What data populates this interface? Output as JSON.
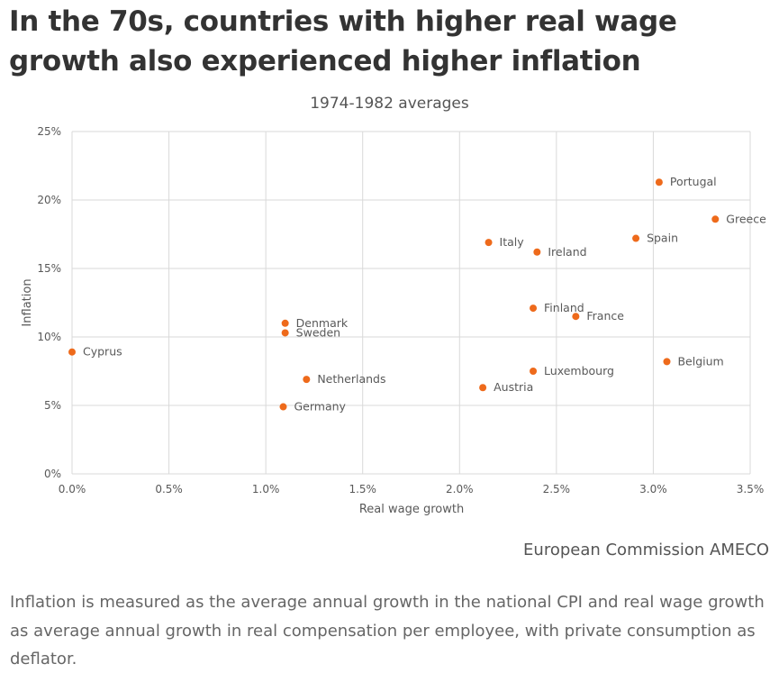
{
  "title": "In the 70s, countries with higher real wage growth also experienced higher inflation",
  "source": "European Commission AMECO",
  "note": "Inflation is measured as the average annual growth in the national CPI and real wage growth as average annual growth in real compensation per employee, with private consumption as deflator.",
  "colors": {
    "point": "#ee6a1b",
    "grid": "#d9d9d9",
    "text": "#595959"
  },
  "chart_data": {
    "type": "scatter",
    "title": "1974-1982 averages",
    "xlabel": "Real wage growth",
    "ylabel": "Inflation",
    "xlim": [
      0,
      0.035
    ],
    "ylim": [
      0,
      0.25
    ],
    "xticks": [
      0,
      0.005,
      0.01,
      0.015,
      0.02,
      0.025,
      0.03,
      0.035
    ],
    "xtick_labels": [
      "0.0%",
      "0.5%",
      "1.0%",
      "1.5%",
      "2.0%",
      "2.5%",
      "3.0%",
      "3.5%"
    ],
    "yticks": [
      0,
      0.05,
      0.1,
      0.15,
      0.2,
      0.25
    ],
    "ytick_labels": [
      "0%",
      "5%",
      "10%",
      "15%",
      "20%",
      "25%"
    ],
    "grid": true,
    "points": [
      {
        "label": "Cyprus",
        "x": 0.0,
        "y": 0.089
      },
      {
        "label": "Denmark",
        "x": 0.011,
        "y": 0.11
      },
      {
        "label": "Sweden",
        "x": 0.011,
        "y": 0.103
      },
      {
        "label": "Netherlands",
        "x": 0.0121,
        "y": 0.069
      },
      {
        "label": "Germany",
        "x": 0.0109,
        "y": 0.049
      },
      {
        "label": "Italy",
        "x": 0.0215,
        "y": 0.169
      },
      {
        "label": "Ireland",
        "x": 0.024,
        "y": 0.162
      },
      {
        "label": "Finland",
        "x": 0.0238,
        "y": 0.121
      },
      {
        "label": "France",
        "x": 0.026,
        "y": 0.115
      },
      {
        "label": "Luxembourg",
        "x": 0.0238,
        "y": 0.075
      },
      {
        "label": "Austria",
        "x": 0.0212,
        "y": 0.063
      },
      {
        "label": "Portugal",
        "x": 0.0303,
        "y": 0.213
      },
      {
        "label": "Greece",
        "x": 0.0332,
        "y": 0.186
      },
      {
        "label": "Spain",
        "x": 0.0291,
        "y": 0.172
      },
      {
        "label": "Belgium",
        "x": 0.0307,
        "y": 0.082
      }
    ]
  }
}
